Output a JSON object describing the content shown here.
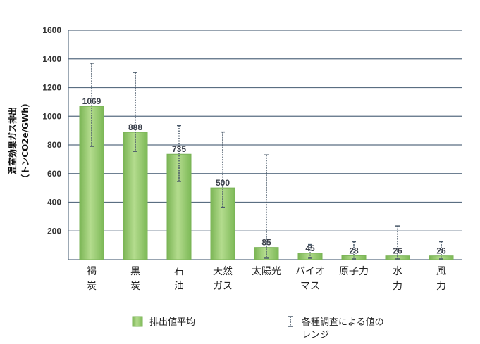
{
  "chart_data": {
    "type": "bar",
    "categories": [
      [
        "褐",
        "炭"
      ],
      [
        "黒",
        "炭"
      ],
      [
        "石",
        "油"
      ],
      [
        "天然",
        "ガス"
      ],
      [
        "太陽光"
      ],
      [
        "バイオ",
        "マス"
      ],
      [
        "原子力"
      ],
      [
        "水",
        "力"
      ],
      [
        "風",
        "力"
      ]
    ],
    "values": [
      1069,
      888,
      735,
      500,
      85,
      45,
      28,
      26,
      26
    ],
    "ranges": [
      [
        790,
        1370
      ],
      [
        755,
        1305
      ],
      [
        545,
        935
      ],
      [
        365,
        890
      ],
      [
        10,
        730
      ],
      [
        10,
        105
      ],
      [
        5,
        125
      ],
      [
        5,
        235
      ],
      [
        5,
        125
      ]
    ],
    "ylabel_lines": [
      "温室効果ガス排出",
      "（トンCO2e/GWh）"
    ],
    "ylim": [
      0,
      1600
    ],
    "yticks": [
      200,
      400,
      600,
      800,
      1000,
      1200,
      1400,
      1600
    ],
    "grid": true,
    "legend": {
      "bar_label": "排出値平均",
      "range_label_lines": [
        "各種調査による値の",
        "レンジ"
      ],
      "placement": "bottom"
    },
    "colors": {
      "bar_fill": "#92c86a",
      "bar_edge": "#7ab356",
      "grid": "#5a6e82",
      "range": "#4a5a6a"
    }
  }
}
